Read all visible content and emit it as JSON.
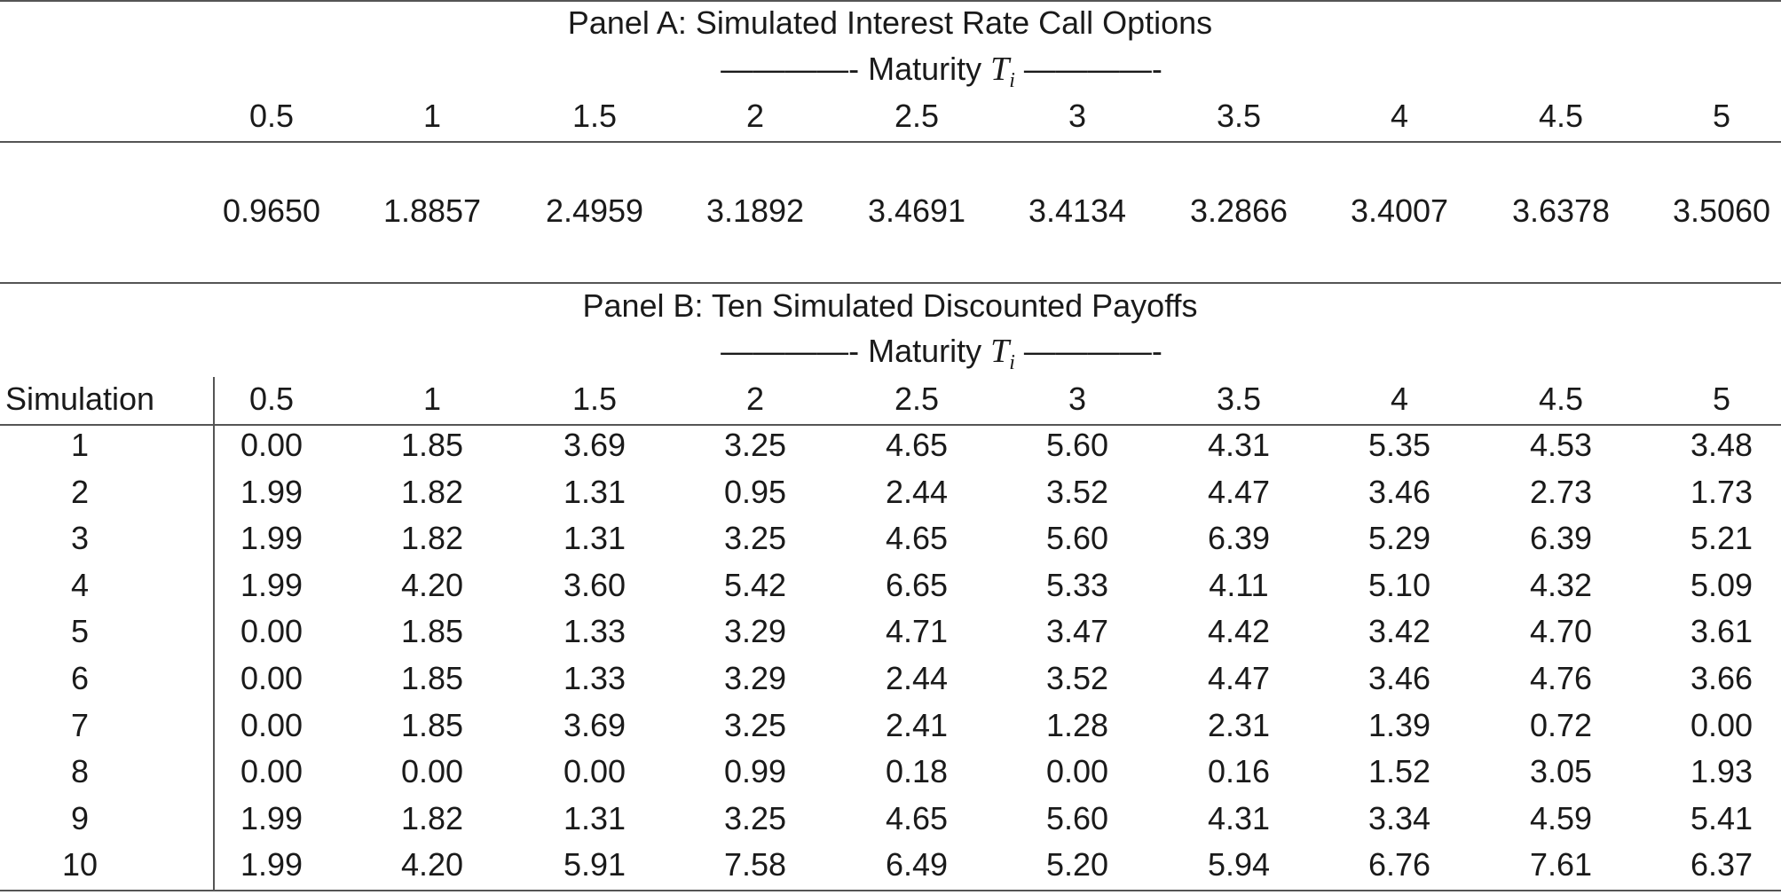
{
  "panel_a": {
    "title": "Panel A: Simulated Interest Rate Call Options",
    "maturity_prefix": "————- Maturity ",
    "maturity_symbol": "T",
    "maturity_sub": "i",
    "maturity_suffix": " ————-",
    "maturities": [
      "0.5",
      "1",
      "1.5",
      "2",
      "2.5",
      "3",
      "3.5",
      "4",
      "4.5",
      "5"
    ],
    "values": [
      "0.9650",
      "1.8857",
      "2.4959",
      "3.1892",
      "3.4691",
      "3.4134",
      "3.2866",
      "3.4007",
      "3.6378",
      "3.5060"
    ]
  },
  "panel_b": {
    "title": "Panel B: Ten Simulated Discounted Payoffs",
    "maturity_prefix": "————- Maturity ",
    "maturity_symbol": "T",
    "maturity_sub": "i",
    "maturity_suffix": " ————-",
    "row_header": "Simulation",
    "maturities": [
      "0.5",
      "1",
      "1.5",
      "2",
      "2.5",
      "3",
      "3.5",
      "4",
      "4.5",
      "5"
    ],
    "rows": [
      {
        "sim": "1",
        "values": [
          "0.00",
          "1.85",
          "3.69",
          "3.25",
          "4.65",
          "5.60",
          "4.31",
          "5.35",
          "4.53",
          "3.48"
        ]
      },
      {
        "sim": "2",
        "values": [
          "1.99",
          "1.82",
          "1.31",
          "0.95",
          "2.44",
          "3.52",
          "4.47",
          "3.46",
          "2.73",
          "1.73"
        ]
      },
      {
        "sim": "3",
        "values": [
          "1.99",
          "1.82",
          "1.31",
          "3.25",
          "4.65",
          "5.60",
          "6.39",
          "5.29",
          "6.39",
          "5.21"
        ]
      },
      {
        "sim": "4",
        "values": [
          "1.99",
          "4.20",
          "3.60",
          "5.42",
          "6.65",
          "5.33",
          "4.11",
          "5.10",
          "4.32",
          "5.09"
        ]
      },
      {
        "sim": "5",
        "values": [
          "0.00",
          "1.85",
          "1.33",
          "3.29",
          "4.71",
          "3.47",
          "4.42",
          "3.42",
          "4.70",
          "3.61"
        ]
      },
      {
        "sim": "6",
        "values": [
          "0.00",
          "1.85",
          "1.33",
          "3.29",
          "2.44",
          "3.52",
          "4.47",
          "3.46",
          "4.76",
          "3.66"
        ]
      },
      {
        "sim": "7",
        "values": [
          "0.00",
          "1.85",
          "3.69",
          "3.25",
          "2.41",
          "1.28",
          "2.31",
          "1.39",
          "0.72",
          "0.00"
        ]
      },
      {
        "sim": "8",
        "values": [
          "0.00",
          "0.00",
          "0.00",
          "0.99",
          "0.18",
          "0.00",
          "0.16",
          "1.52",
          "3.05",
          "1.93"
        ]
      },
      {
        "sim": "9",
        "values": [
          "1.99",
          "1.82",
          "1.31",
          "3.25",
          "4.65",
          "5.60",
          "4.31",
          "3.34",
          "4.59",
          "5.41"
        ]
      },
      {
        "sim": "10",
        "values": [
          "1.99",
          "4.20",
          "5.91",
          "7.58",
          "6.49",
          "5.20",
          "5.94",
          "6.76",
          "7.61",
          "6.37"
        ]
      }
    ]
  }
}
